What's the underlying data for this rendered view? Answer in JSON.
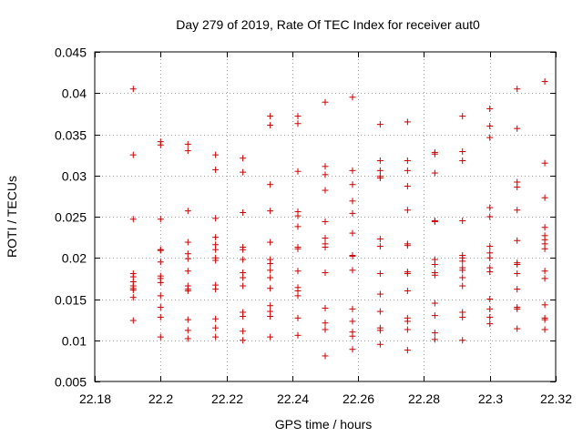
{
  "chart_data": {
    "type": "scatter",
    "title": "Day 279 of 2019, Rate Of TEC Index for receiver aut0",
    "xlabel": "GPS time / hours",
    "ylabel": "ROTI / TECUs",
    "xlim": [
      22.18,
      22.32
    ],
    "ylim": [
      0.005,
      0.045
    ],
    "xticks": [
      22.18,
      22.2,
      22.22,
      22.24,
      22.26,
      22.28,
      22.3,
      22.32
    ],
    "xtick_labels": [
      "22.18",
      "22.2",
      "22.22",
      "22.24",
      "22.26",
      "22.28",
      "22.3",
      "22.32"
    ],
    "yticks": [
      0.005,
      0.01,
      0.015,
      0.02,
      0.025,
      0.03,
      0.035,
      0.04,
      0.045
    ],
    "ytick_labels": [
      "0.005",
      "0.01",
      "0.015",
      "0.02",
      "0.025",
      "0.03",
      "0.035",
      "0.04",
      "0.045"
    ],
    "grid": true,
    "marker": "+",
    "color": "#cc0000",
    "series": [
      {
        "name": "aut0",
        "points": [
          [
            22.1917,
            0.0405
          ],
          [
            22.1917,
            0.0325
          ],
          [
            22.1917,
            0.0247
          ],
          [
            22.1917,
            0.0181
          ],
          [
            22.1917,
            0.0177
          ],
          [
            22.1917,
            0.0171
          ],
          [
            22.1917,
            0.0166
          ],
          [
            22.1917,
            0.0163
          ],
          [
            22.1917,
            0.0161
          ],
          [
            22.1917,
            0.0152
          ],
          [
            22.1917,
            0.0124
          ],
          [
            22.2,
            0.0341
          ],
          [
            22.2,
            0.0337
          ],
          [
            22.2,
            0.0247
          ],
          [
            22.2,
            0.021
          ],
          [
            22.2,
            0.0209
          ],
          [
            22.2,
            0.0195
          ],
          [
            22.2,
            0.0178
          ],
          [
            22.2,
            0.0175
          ],
          [
            22.2,
            0.017
          ],
          [
            22.2,
            0.0154
          ],
          [
            22.2,
            0.014
          ],
          [
            22.2,
            0.0128
          ],
          [
            22.2,
            0.0104
          ],
          [
            22.2083,
            0.0338
          ],
          [
            22.2083,
            0.033
          ],
          [
            22.2083,
            0.0257
          ],
          [
            22.2083,
            0.0219
          ],
          [
            22.2083,
            0.0205
          ],
          [
            22.2083,
            0.0199
          ],
          [
            22.2083,
            0.0184
          ],
          [
            22.2083,
            0.0166
          ],
          [
            22.2083,
            0.0162
          ],
          [
            22.2083,
            0.016
          ],
          [
            22.2083,
            0.0125
          ],
          [
            22.2083,
            0.0112
          ],
          [
            22.2083,
            0.0102
          ],
          [
            22.2167,
            0.0325
          ],
          [
            22.2167,
            0.0307
          ],
          [
            22.2167,
            0.0248
          ],
          [
            22.2167,
            0.0225
          ],
          [
            22.2167,
            0.0216
          ],
          [
            22.2167,
            0.021
          ],
          [
            22.2167,
            0.02
          ],
          [
            22.2167,
            0.0197
          ],
          [
            22.2167,
            0.0167
          ],
          [
            22.2167,
            0.0162
          ],
          [
            22.2167,
            0.0126
          ],
          [
            22.2167,
            0.0115
          ],
          [
            22.2167,
            0.0104
          ],
          [
            22.225,
            0.0321
          ],
          [
            22.225,
            0.0304
          ],
          [
            22.225,
            0.0255
          ],
          [
            22.225,
            0.0213
          ],
          [
            22.225,
            0.021
          ],
          [
            22.225,
            0.0198
          ],
          [
            22.225,
            0.0182
          ],
          [
            22.225,
            0.0176
          ],
          [
            22.225,
            0.0166
          ],
          [
            22.225,
            0.0134
          ],
          [
            22.225,
            0.0129
          ],
          [
            22.225,
            0.0111
          ],
          [
            22.225,
            0.01
          ],
          [
            22.2333,
            0.0372
          ],
          [
            22.2333,
            0.0361
          ],
          [
            22.2333,
            0.0289
          ],
          [
            22.2333,
            0.0257
          ],
          [
            22.2333,
            0.0219
          ],
          [
            22.2333,
            0.0198
          ],
          [
            22.2333,
            0.0193
          ],
          [
            22.2333,
            0.0185
          ],
          [
            22.2333,
            0.0176
          ],
          [
            22.2333,
            0.0163
          ],
          [
            22.2333,
            0.0142
          ],
          [
            22.2333,
            0.0135
          ],
          [
            22.2333,
            0.0129
          ],
          [
            22.2333,
            0.0104
          ],
          [
            22.2417,
            0.0372
          ],
          [
            22.2417,
            0.0363
          ],
          [
            22.2417,
            0.0305
          ],
          [
            22.2417,
            0.0256
          ],
          [
            22.2417,
            0.0251
          ],
          [
            22.2417,
            0.0238
          ],
          [
            22.2417,
            0.0213
          ],
          [
            22.2417,
            0.0211
          ],
          [
            22.2417,
            0.0184
          ],
          [
            22.2417,
            0.0164
          ],
          [
            22.2417,
            0.016
          ],
          [
            22.2417,
            0.0154
          ],
          [
            22.2417,
            0.0127
          ],
          [
            22.2417,
            0.0106
          ],
          [
            22.25,
            0.0389
          ],
          [
            22.25,
            0.0311
          ],
          [
            22.25,
            0.0301
          ],
          [
            22.25,
            0.0282
          ],
          [
            22.25,
            0.0244
          ],
          [
            22.25,
            0.0224
          ],
          [
            22.25,
            0.0217
          ],
          [
            22.25,
            0.0213
          ],
          [
            22.25,
            0.0182
          ],
          [
            22.25,
            0.0139
          ],
          [
            22.25,
            0.0121
          ],
          [
            22.25,
            0.0113
          ],
          [
            22.25,
            0.0081
          ],
          [
            22.2583,
            0.0395
          ],
          [
            22.2583,
            0.0306
          ],
          [
            22.2583,
            0.0289
          ],
          [
            22.2583,
            0.0269
          ],
          [
            22.2583,
            0.0254
          ],
          [
            22.2583,
            0.023
          ],
          [
            22.2583,
            0.0203
          ],
          [
            22.2583,
            0.0202
          ],
          [
            22.2583,
            0.0185
          ],
          [
            22.2583,
            0.0138
          ],
          [
            22.2583,
            0.0123
          ],
          [
            22.2583,
            0.011
          ],
          [
            22.2583,
            0.0105
          ],
          [
            22.2583,
            0.0089
          ],
          [
            22.2667,
            0.0362
          ],
          [
            22.2667,
            0.0318
          ],
          [
            22.2667,
            0.0306
          ],
          [
            22.2667,
            0.0299
          ],
          [
            22.2667,
            0.0297
          ],
          [
            22.2667,
            0.0223
          ],
          [
            22.2667,
            0.0214
          ],
          [
            22.2667,
            0.0181
          ],
          [
            22.2667,
            0.0156
          ],
          [
            22.2667,
            0.0135
          ],
          [
            22.2667,
            0.0115
          ],
          [
            22.2667,
            0.0112
          ],
          [
            22.2667,
            0.0095
          ],
          [
            22.275,
            0.0365
          ],
          [
            22.275,
            0.0318
          ],
          [
            22.275,
            0.0306
          ],
          [
            22.275,
            0.0287
          ],
          [
            22.275,
            0.0258
          ],
          [
            22.275,
            0.0217
          ],
          [
            22.275,
            0.0215
          ],
          [
            22.275,
            0.0183
          ],
          [
            22.275,
            0.0181
          ],
          [
            22.275,
            0.016
          ],
          [
            22.275,
            0.0127
          ],
          [
            22.275,
            0.0123
          ],
          [
            22.275,
            0.0113
          ],
          [
            22.275,
            0.0088
          ],
          [
            22.2833,
            0.0328
          ],
          [
            22.2833,
            0.0326
          ],
          [
            22.2833,
            0.0303
          ],
          [
            22.2833,
            0.0245
          ],
          [
            22.2833,
            0.0244
          ],
          [
            22.2833,
            0.0198
          ],
          [
            22.2833,
            0.0192
          ],
          [
            22.2833,
            0.0182
          ],
          [
            22.2833,
            0.0179
          ],
          [
            22.2833,
            0.0145
          ],
          [
            22.2833,
            0.013
          ],
          [
            22.2833,
            0.0109
          ],
          [
            22.2833,
            0.0101
          ],
          [
            22.2917,
            0.0372
          ],
          [
            22.2917,
            0.0329
          ],
          [
            22.2917,
            0.0318
          ],
          [
            22.2917,
            0.0245
          ],
          [
            22.2917,
            0.0203
          ],
          [
            22.2917,
            0.02
          ],
          [
            22.2917,
            0.0196
          ],
          [
            22.2917,
            0.0188
          ],
          [
            22.2917,
            0.0185
          ],
          [
            22.2917,
            0.0176
          ],
          [
            22.2917,
            0.0166
          ],
          [
            22.2917,
            0.0134
          ],
          [
            22.2917,
            0.0128
          ],
          [
            22.2917,
            0.01
          ],
          [
            22.3,
            0.0381
          ],
          [
            22.3,
            0.036
          ],
          [
            22.3,
            0.0346
          ],
          [
            22.3,
            0.0261
          ],
          [
            22.3,
            0.025
          ],
          [
            22.3,
            0.0214
          ],
          [
            22.3,
            0.0206
          ],
          [
            22.3,
            0.02
          ],
          [
            22.3,
            0.0188
          ],
          [
            22.3,
            0.0183
          ],
          [
            22.3,
            0.015
          ],
          [
            22.3,
            0.0138
          ],
          [
            22.3,
            0.0128
          ],
          [
            22.3,
            0.012
          ],
          [
            22.3083,
            0.0405
          ],
          [
            22.3083,
            0.0357
          ],
          [
            22.3083,
            0.0292
          ],
          [
            22.3083,
            0.0286
          ],
          [
            22.3083,
            0.0258
          ],
          [
            22.3083,
            0.0221
          ],
          [
            22.3083,
            0.0194
          ],
          [
            22.3083,
            0.0192
          ],
          [
            22.3083,
            0.0181
          ],
          [
            22.3083,
            0.0162
          ],
          [
            22.3083,
            0.014
          ],
          [
            22.3083,
            0.0138
          ],
          [
            22.3083,
            0.0114
          ],
          [
            22.3167,
            0.0414
          ],
          [
            22.3167,
            0.0315
          ],
          [
            22.3167,
            0.0273
          ],
          [
            22.3167,
            0.0237
          ],
          [
            22.3167,
            0.0227
          ],
          [
            22.3167,
            0.0222
          ],
          [
            22.3167,
            0.0217
          ],
          [
            22.3167,
            0.0211
          ],
          [
            22.3167,
            0.0184
          ],
          [
            22.3167,
            0.0175
          ],
          [
            22.3167,
            0.0143
          ],
          [
            22.3167,
            0.0127
          ],
          [
            22.3167,
            0.0125
          ],
          [
            22.3167,
            0.0113
          ]
        ]
      }
    ]
  }
}
